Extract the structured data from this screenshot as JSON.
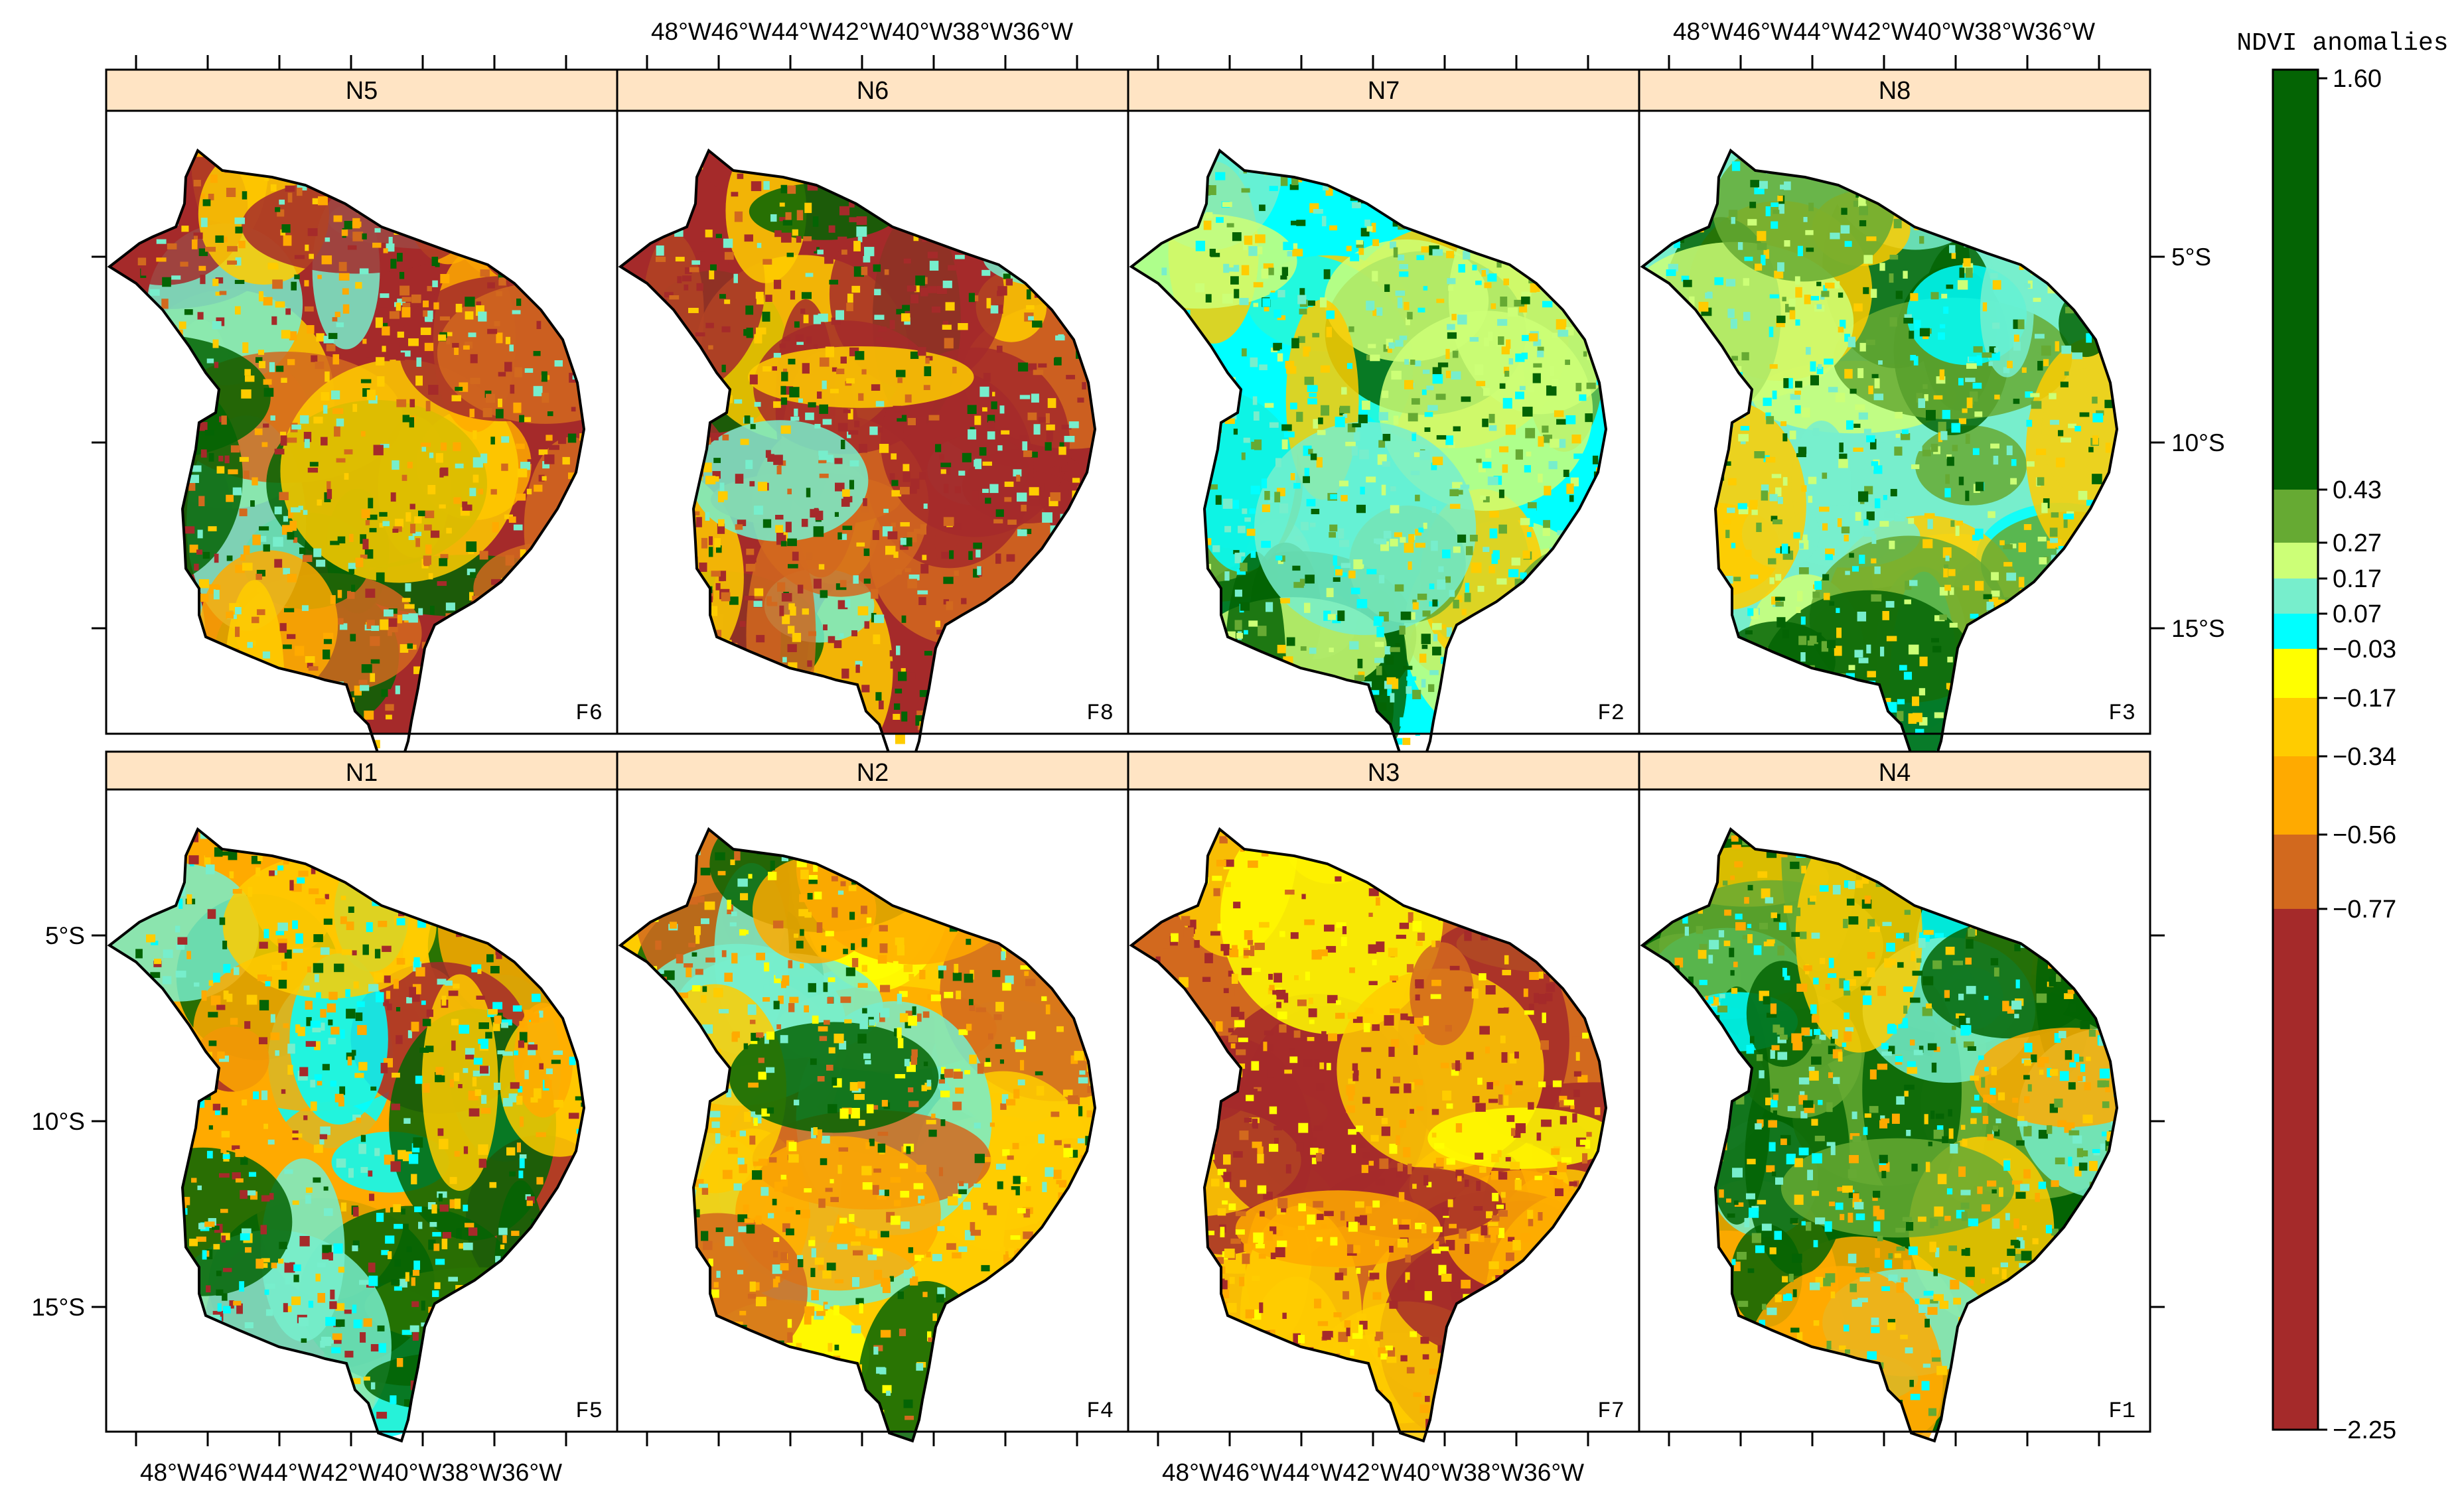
{
  "legend": {
    "title": "NDVI anomalies",
    "labels": [
      "1.60",
      "0.43",
      "0.27",
      "0.17",
      "0.07",
      "−0.03",
      "−0.17",
      "−0.34",
      "−0.56",
      "−0.77",
      "−2.25"
    ],
    "colors": [
      "#046404",
      "#66aa33",
      "#ccff77",
      "#77eecc",
      "#00ffff",
      "#ffff00",
      "#ffcc00",
      "#ffaa00",
      "#d2691e",
      "#a52a2a"
    ]
  },
  "axes": {
    "lon_labels": [
      "48°W",
      "46°W",
      "44°W",
      "42°W",
      "40°W",
      "38°W",
      "36°W"
    ],
    "lat_labels": [
      "5°S",
      "10°S",
      "15°S"
    ]
  },
  "panels": [
    {
      "strip": "N5",
      "tag": "F6",
      "colors": [
        "#a52a2a",
        "#d2691e",
        "#ffaa00",
        "#ffcc00",
        "#77eecc",
        "#046404"
      ]
    },
    {
      "strip": "N6",
      "tag": "F8",
      "colors": [
        "#a52a2a",
        "#a52a2a",
        "#d2691e",
        "#ffcc00",
        "#77eecc",
        "#046404"
      ]
    },
    {
      "strip": "N7",
      "tag": "F2",
      "colors": [
        "#00ffff",
        "#77eecc",
        "#ccff77",
        "#66aa33",
        "#046404",
        "#ffcc00"
      ]
    },
    {
      "strip": "N8",
      "tag": "F3",
      "colors": [
        "#77eecc",
        "#00ffff",
        "#ccff77",
        "#66aa33",
        "#046404",
        "#ffcc00"
      ]
    },
    {
      "strip": "N1",
      "tag": "F5",
      "colors": [
        "#ffaa00",
        "#ffcc00",
        "#77eecc",
        "#00ffff",
        "#046404",
        "#a52a2a"
      ]
    },
    {
      "strip": "N2",
      "tag": "F4",
      "colors": [
        "#ffcc00",
        "#ffaa00",
        "#ffff00",
        "#77eecc",
        "#046404",
        "#d2691e"
      ]
    },
    {
      "strip": "N3",
      "tag": "F7",
      "colors": [
        "#d2691e",
        "#a52a2a",
        "#ffaa00",
        "#ffcc00",
        "#ffff00",
        "#a52a2a"
      ]
    },
    {
      "strip": "N4",
      "tag": "F1",
      "colors": [
        "#046404",
        "#66aa33",
        "#77eecc",
        "#00ffff",
        "#ffcc00",
        "#ffaa00"
      ]
    }
  ]
}
